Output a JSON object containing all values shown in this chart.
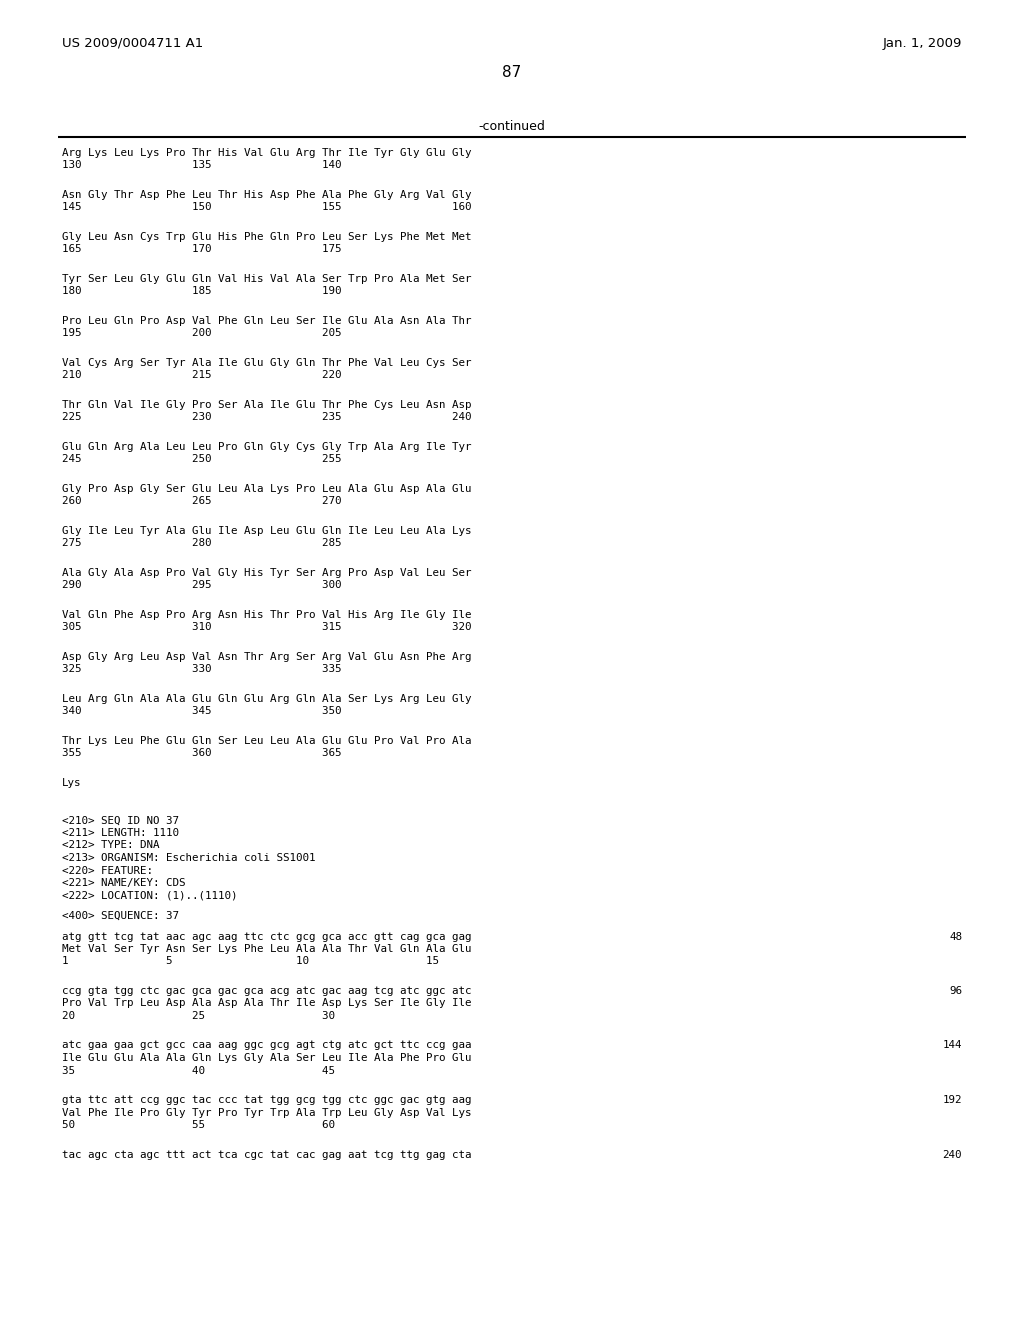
{
  "header_left": "US 2009/0004711 A1",
  "header_right": "Jan. 1, 2009",
  "page_number": "87",
  "continued_label": "-continued",
  "background_color": "#ffffff",
  "text_color": "#000000",
  "aa_data": [
    [
      "Arg Lys Leu Lys Pro Thr His Val Glu Arg Thr Ile Tyr Gly Glu Gly",
      "130                 135                 140"
    ],
    [
      "Asn Gly Thr Asp Phe Leu Thr His Asp Phe Ala Phe Gly Arg Val Gly",
      "145                 150                 155                 160"
    ],
    [
      "Gly Leu Asn Cys Trp Glu His Phe Gln Pro Leu Ser Lys Phe Met Met",
      "165                 170                 175"
    ],
    [
      "Tyr Ser Leu Gly Glu Gln Val His Val Ala Ser Trp Pro Ala Met Ser",
      "180                 185                 190"
    ],
    [
      "Pro Leu Gln Pro Asp Val Phe Gln Leu Ser Ile Glu Ala Asn Ala Thr",
      "195                 200                 205"
    ],
    [
      "Val Cys Arg Ser Tyr Ala Ile Glu Gly Gln Thr Phe Val Leu Cys Ser",
      "210                 215                 220"
    ],
    [
      "Thr Gln Val Ile Gly Pro Ser Ala Ile Glu Thr Phe Cys Leu Asn Asp",
      "225                 230                 235                 240"
    ],
    [
      "Glu Gln Arg Ala Leu Leu Pro Gln Gly Cys Gly Trp Ala Arg Ile Tyr",
      "245                 250                 255"
    ],
    [
      "Gly Pro Asp Gly Ser Glu Leu Ala Lys Pro Leu Ala Glu Asp Ala Glu",
      "260                 265                 270"
    ],
    [
      "Gly Ile Leu Tyr Ala Glu Ile Asp Leu Glu Gln Ile Leu Leu Ala Lys",
      "275                 280                 285"
    ],
    [
      "Ala Gly Ala Asp Pro Val Gly His Tyr Ser Arg Pro Asp Val Leu Ser",
      "290                 295                 300"
    ],
    [
      "Val Gln Phe Asp Pro Arg Asn His Thr Pro Val His Arg Ile Gly Ile",
      "305                 310                 315                 320"
    ],
    [
      "Asp Gly Arg Leu Asp Val Asn Thr Arg Ser Arg Val Glu Asn Phe Arg",
      "325                 330                 335"
    ],
    [
      "Leu Arg Gln Ala Ala Glu Gln Glu Arg Gln Ala Ser Lys Arg Leu Gly",
      "340                 345                 350"
    ],
    [
      "Thr Lys Leu Phe Glu Gln Ser Leu Leu Ala Glu Glu Pro Val Pro Ala",
      "355                 360                 365"
    ]
  ],
  "aa_last": "Lys",
  "meta_lines": [
    "<210> SEQ ID NO 37",
    "<211> LENGTH: 1110",
    "<212> TYPE: DNA",
    "<213> ORGANISM: Escherichia coli SS1001",
    "<220> FEATURE:",
    "<221> NAME/KEY: CDS",
    "<222> LOCATION: (1)..(1110)"
  ],
  "seq_header": "<400> SEQUENCE: 37",
  "dna_data": [
    {
      "dna": "atg gtt tcg tat aac agc aag ttc ctc gcg gca acc gtt cag gca gag",
      "aa": "Met Val Ser Tyr Asn Ser Lys Phe Leu Ala Ala Thr Val Gln Ala Glu",
      "nums": "1               5                   10                  15",
      "n": "48"
    },
    {
      "dna": "ccg gta tgg ctc gac gca gac gca acg atc gac aag tcg atc ggc atc",
      "aa": "Pro Val Trp Leu Asp Ala Asp Ala Thr Ile Asp Lys Ser Ile Gly Ile",
      "nums": "20                  25                  30",
      "n": "96"
    },
    {
      "dna": "atc gaa gaa gct gcc caa aag ggc gcg agt ctg atc gct ttc ccg gaa",
      "aa": "Ile Glu Glu Ala Ala Gln Lys Gly Ala Ser Leu Ile Ala Phe Pro Glu",
      "nums": "35                  40                  45",
      "n": "144"
    },
    {
      "dna": "gta ttc att ccg ggc tac ccc tat tgg gcg tgg ctc ggc gac gtg aag",
      "aa": "Val Phe Ile Pro Gly Tyr Pro Tyr Trp Ala Trp Leu Gly Asp Val Lys",
      "nums": "50                  55                  60",
      "n": "192"
    },
    {
      "dna": "tac agc cta agc ttt act tca cgc tat cac gag aat tcg ttg gag cta",
      "aa": null,
      "nums": null,
      "n": "240"
    }
  ]
}
